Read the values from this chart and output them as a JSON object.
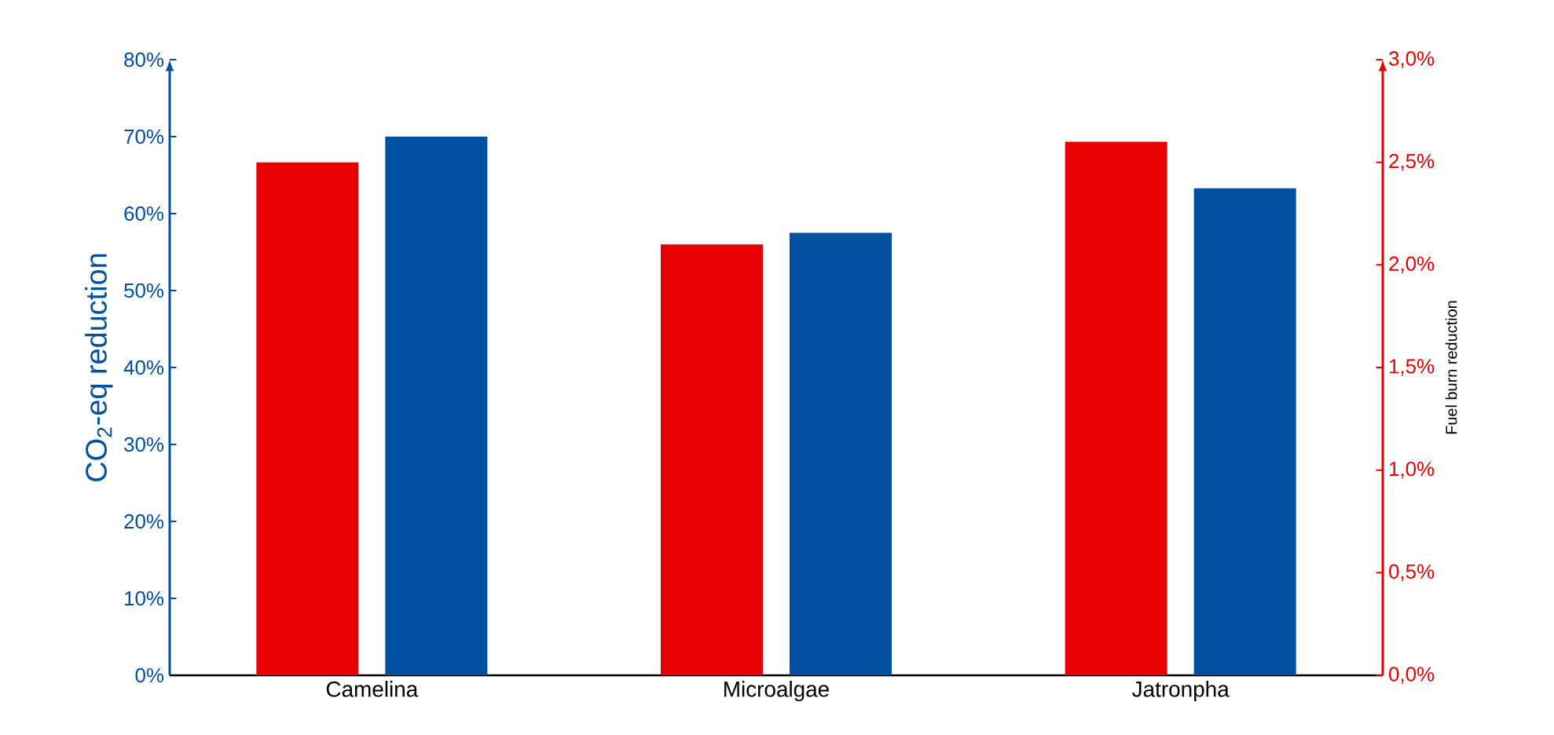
{
  "chart_data": {
    "type": "bar",
    "categories": [
      "Camelina",
      "Microalgae",
      "Jatronpha"
    ],
    "ylabel": "CO$_{2}$-eq reduction",
    "y2label": "Fuel burn reduction",
    "ylim": [
      0,
      80
    ],
    "yticks": [
      {
        "value": 0,
        "label": "0%"
      },
      {
        "value": 10,
        "label": "10%"
      },
      {
        "value": 20,
        "label": "20%"
      },
      {
        "value": 30,
        "label": "30%"
      },
      {
        "value": 40,
        "label": "40%"
      },
      {
        "value": 50,
        "label": "50%"
      },
      {
        "value": 60,
        "label": "60%"
      },
      {
        "value": 70,
        "label": "70%"
      },
      {
        "value": 80,
        "label": "80%"
      }
    ],
    "y2lim": [
      0,
      3
    ],
    "y2ticks": [
      {
        "value": 0,
        "label": "0,0%"
      },
      {
        "value": 0.5,
        "label": "0,5%"
      },
      {
        "value": 1,
        "label": "1,0%"
      },
      {
        "value": 1.5,
        "label": "1,5%"
      },
      {
        "value": 2,
        "label": "2,0%"
      },
      {
        "value": 2.5,
        "label": "2,5%"
      },
      {
        "value": 3,
        "label": "3,0%"
      }
    ],
    "series": [
      {
        "color": "#e60000",
        "axis": "y2",
        "values": [
          2.5,
          2.1,
          2.6
        ]
      },
      {
        "color": "#0050a0",
        "values": [
          70,
          57.5,
          63.3
        ]
      }
    ]
  }
}
